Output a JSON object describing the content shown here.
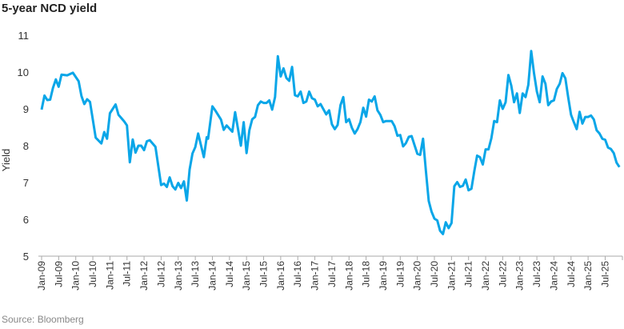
{
  "chart_data": {
    "type": "line",
    "title": "5-year NCD yield",
    "xlabel": "",
    "ylabel": "Yield",
    "ylim": [
      5,
      11
    ],
    "yticks": [
      "5",
      "6",
      "7",
      "8",
      "9",
      "10",
      "11"
    ],
    "xticks": [
      "Jan-09",
      "Jul-09",
      "Jan-10",
      "Jul-10",
      "Jan-11",
      "Jul-11",
      "Jan-12",
      "Jul-12",
      "Jan-13",
      "Jul-13",
      "Jan-14",
      "Jul-14",
      "Jan-15",
      "Jul-15",
      "Jan-16",
      "Jul-16",
      "Jan-17",
      "Jul-17",
      "Jan-18",
      "Jul-18",
      "Jan-19",
      "Jul-19",
      "Jan-20",
      "Jul-20",
      "Jan-21",
      "Jul-21",
      "Jan-22",
      "Jul-22",
      "Jan-23",
      "Jul-23",
      "Jan-24",
      "Jul-24",
      "Jan-25",
      "Jul-25"
    ],
    "grid": false,
    "color": "#0aa6e8",
    "series": [
      {
        "name": "5-year NCD yield",
        "x_months_from_first_tick": [
          0,
          1,
          2,
          3,
          4,
          5,
          6,
          7,
          9,
          11,
          13,
          14,
          15,
          16,
          17,
          19,
          21,
          22,
          23,
          24,
          26,
          27,
          29,
          30,
          31,
          32,
          33,
          34,
          35,
          36,
          37,
          38,
          40,
          42,
          43,
          44,
          45,
          46,
          47,
          48,
          49,
          50,
          51,
          52,
          53,
          54,
          55,
          57,
          58,
          58.5,
          60,
          61,
          63,
          64,
          65,
          67,
          68,
          70,
          71,
          72,
          73,
          74,
          75,
          76,
          77,
          78,
          79,
          80,
          81,
          82,
          83,
          84,
          85,
          86,
          87,
          88,
          89,
          90,
          91,
          92,
          93,
          94,
          95,
          96,
          97,
          98,
          100,
          101,
          102,
          103,
          104,
          105,
          106,
          107,
          108,
          109,
          110,
          111,
          112,
          113,
          114,
          115,
          116,
          117,
          118,
          119,
          120,
          121,
          123,
          124,
          125,
          126,
          127,
          128,
          129,
          130,
          131,
          132,
          133,
          134,
          135,
          136,
          137,
          138,
          139,
          140,
          141,
          142,
          143,
          144,
          145,
          146,
          147,
          148,
          149,
          150,
          151,
          152,
          153,
          154,
          155,
          156,
          157,
          158,
          159,
          160,
          161,
          162,
          163,
          164,
          165,
          166,
          167,
          168,
          169,
          170,
          171,
          172,
          173,
          174,
          175,
          176,
          177,
          178,
          179,
          180,
          181,
          182,
          183,
          184,
          185,
          186,
          187,
          188,
          189,
          190,
          191,
          192,
          193,
          194,
          195,
          196,
          197,
          198,
          199,
          200,
          201,
          202,
          203
        ],
        "values": [
          8.98,
          9.36,
          9.24,
          9.25,
          9.57,
          9.8,
          9.6,
          9.93,
          9.91,
          9.98,
          9.75,
          9.35,
          9.13,
          9.26,
          9.19,
          8.22,
          8.06,
          8.37,
          8.19,
          8.88,
          9.12,
          8.84,
          8.66,
          8.55,
          7.55,
          8.17,
          7.81,
          8.0,
          8.0,
          7.88,
          8.12,
          8.15,
          7.97,
          6.93,
          6.97,
          6.88,
          7.14,
          6.9,
          6.81,
          6.99,
          6.85,
          7.03,
          6.51,
          7.35,
          7.79,
          7.96,
          8.33,
          7.69,
          8.23,
          8.19,
          9.07,
          8.96,
          8.71,
          8.43,
          8.55,
          8.38,
          8.91,
          8.0,
          8.64,
          7.8,
          8.42,
          8.72,
          8.78,
          9.1,
          9.2,
          9.16,
          9.16,
          9.23,
          8.98,
          9.32,
          10.43,
          9.88,
          10.1,
          9.84,
          9.76,
          10.14,
          9.37,
          9.34,
          9.47,
          9.16,
          9.2,
          9.47,
          9.29,
          9.25,
          9.07,
          9.13,
          8.85,
          8.96,
          8.58,
          8.45,
          8.56,
          9.1,
          9.32,
          8.64,
          8.72,
          8.49,
          8.33,
          8.45,
          8.64,
          9.03,
          8.79,
          9.25,
          9.2,
          9.34,
          8.96,
          8.84,
          8.64,
          8.67,
          8.67,
          8.53,
          8.27,
          8.29,
          7.98,
          8.07,
          8.24,
          8.26,
          8.02,
          7.78,
          7.75,
          8.19,
          7.33,
          6.5,
          6.21,
          6.02,
          5.97,
          5.69,
          5.6,
          5.92,
          5.76,
          5.9,
          6.9,
          7.01,
          6.88,
          6.91,
          7.08,
          6.79,
          6.83,
          7.3,
          7.73,
          7.69,
          7.49,
          7.9,
          7.9,
          8.2,
          8.67,
          8.64,
          9.23,
          9.0,
          9.18,
          9.92,
          9.63,
          9.18,
          9.42,
          8.89,
          9.42,
          9.32,
          9.65,
          10.57,
          9.97,
          9.47,
          9.18,
          9.88,
          9.68,
          9.1,
          9.2,
          9.23,
          9.54,
          9.68,
          9.97,
          9.83,
          9.32,
          8.84,
          8.64,
          8.45,
          8.92,
          8.6,
          8.78,
          8.78,
          8.82,
          8.71,
          8.42,
          8.33,
          8.19,
          8.16,
          7.95,
          7.91,
          7.8,
          7.54,
          7.42
        ]
      }
    ]
  },
  "source": "Source: Bloomberg"
}
